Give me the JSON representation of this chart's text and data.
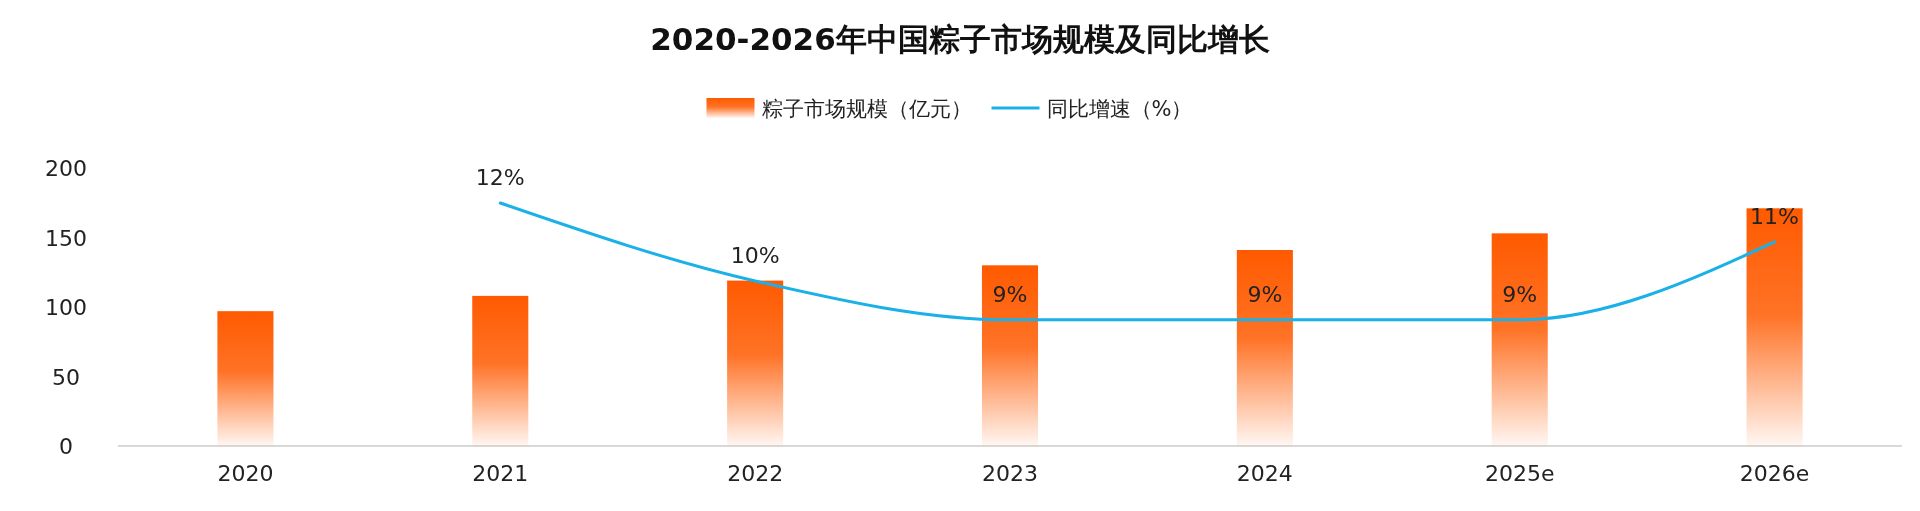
{
  "chart_data": {
    "type": "bar",
    "title": "2020-2026年中国粽子市场规模及同比增长",
    "categories": [
      "2020",
      "2021",
      "2022",
      "2023",
      "2024",
      "2025e",
      "2026e"
    ],
    "ylim": [
      0,
      200
    ],
    "yticks": [
      0,
      50,
      100,
      150,
      200
    ],
    "legend": "top",
    "grid": false,
    "series": [
      {
        "name": "粽子市场规模（亿元）",
        "color": "#ff5a00",
        "values": [
          97,
          108,
          119,
          130,
          141,
          153,
          171
        ]
      },
      {
        "name": "同比增速（%）",
        "type": "line",
        "axis": "y2",
        "color": "#1ab0e8",
        "values": [
          null,
          12,
          10,
          9,
          9,
          9,
          11
        ],
        "value_labels": [
          null,
          "12%",
          "10%",
          "9%",
          "9%",
          "9%",
          "11%"
        ]
      }
    ]
  }
}
